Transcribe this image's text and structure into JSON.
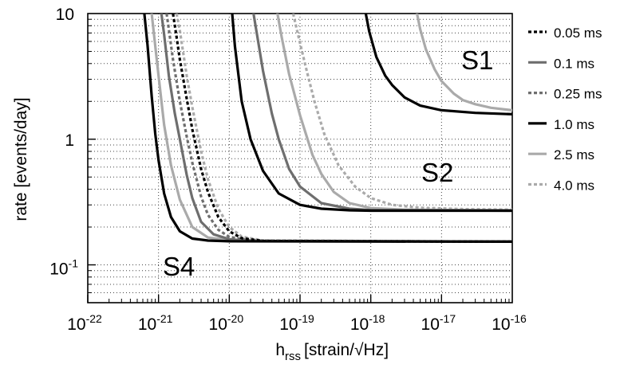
{
  "chart_data": {
    "type": "line",
    "xlabel": "h",
    "xlabel_sub": "rss",
    "xlabel_unit": "[strain/√Hz]",
    "ylabel": "rate [events/day]",
    "xscale": "log",
    "yscale": "log",
    "xlim": [
      1e-22,
      1e-16
    ],
    "ylim": [
      0.05,
      10
    ],
    "x_ticks": [
      {
        "base": "10",
        "exp": "-22",
        "value": 1e-22
      },
      {
        "base": "10",
        "exp": "-21",
        "value": 1e-21
      },
      {
        "base": "10",
        "exp": "-20",
        "value": 1e-20
      },
      {
        "base": "10",
        "exp": "-19",
        "value": 1e-19
      },
      {
        "base": "10",
        "exp": "-18",
        "value": 1e-18
      },
      {
        "base": "10",
        "exp": "-17",
        "value": 1e-17
      },
      {
        "base": "10",
        "exp": "-16",
        "value": 1e-16
      }
    ],
    "y_ticks": [
      {
        "text": "10",
        "value": 10
      },
      {
        "text": "1",
        "value": 1
      },
      {
        "base": "10",
        "exp": "-1",
        "value": 0.1
      }
    ],
    "grid": true,
    "legend_position": "right",
    "legend": [
      {
        "name": "0.05 ms",
        "color": "#000000",
        "dash": "dotted"
      },
      {
        "name": "0.1 ms",
        "color": "#6e6e6e",
        "dash": "solid"
      },
      {
        "name": "0.25 ms",
        "color": "#6e6e6e",
        "dash": "dotted"
      },
      {
        "name": "1.0 ms",
        "color": "#000000",
        "dash": "solid"
      },
      {
        "name": "2.5 ms",
        "color": "#aaaaaa",
        "dash": "solid"
      },
      {
        "name": "4.0 ms",
        "color": "#aaaaaa",
        "dash": "dotted"
      }
    ],
    "annotations": [
      "S1",
      "S2",
      "S4"
    ],
    "series": [
      {
        "run": "S4",
        "style": "1.0 ms",
        "x": [
          6.3e-22,
          7e-22,
          8e-22,
          9e-22,
          1e-21,
          1.2e-21,
          1.5e-21,
          2e-21,
          3e-21,
          5e-21,
          1e-20,
          1e-16
        ],
        "y": [
          10,
          5.6,
          2.2,
          1.1,
          0.68,
          0.37,
          0.24,
          0.185,
          0.162,
          0.156,
          0.154,
          0.153
        ]
      },
      {
        "run": "S4",
        "style": "2.5 ms",
        "x": [
          8e-22,
          9e-22,
          1e-21,
          1.2e-21,
          1.5e-21,
          2e-21,
          3e-21,
          5e-21,
          1e-20,
          2e-20,
          1e-16
        ],
        "y": [
          10,
          5.5,
          3.2,
          1.3,
          0.62,
          0.33,
          0.2,
          0.165,
          0.157,
          0.154,
          0.153
        ]
      },
      {
        "run": "S4",
        "style": "0.1 ms",
        "x": [
          1.1e-21,
          1.2e-21,
          1.4e-21,
          1.7e-21,
          2e-21,
          2.5e-21,
          3e-21,
          4e-21,
          6e-21,
          1e-20,
          2e-20,
          1e-16
        ],
        "y": [
          10,
          6.8,
          3.2,
          1.6,
          1,
          0.52,
          0.34,
          0.22,
          0.175,
          0.16,
          0.155,
          0.153
        ]
      },
      {
        "run": "S4",
        "style": "0.25 ms",
        "x": [
          1.3e-21,
          1.4e-21,
          1.6e-21,
          2e-21,
          2.5e-21,
          3e-21,
          4e-21,
          5e-21,
          7e-21,
          1e-20,
          2e-20,
          1e-16
        ],
        "y": [
          10,
          7.5,
          4.3,
          2,
          1.05,
          0.65,
          0.35,
          0.25,
          0.19,
          0.167,
          0.156,
          0.153
        ]
      },
      {
        "run": "S4",
        "style": "0.05 ms",
        "x": [
          1.6e-21,
          1.8e-21,
          2e-21,
          2.5e-21,
          3e-21,
          4e-21,
          5e-21,
          7e-21,
          1e-20,
          1.5e-20,
          3e-20,
          1e-16
        ],
        "y": [
          10,
          6.5,
          4.3,
          2.1,
          1.2,
          0.58,
          0.38,
          0.24,
          0.185,
          0.163,
          0.155,
          0.153
        ]
      },
      {
        "run": "S4",
        "style": "4.0 ms",
        "x": [
          1.8e-21,
          2e-21,
          2.5e-21,
          3e-21,
          4e-21,
          5e-21,
          7e-21,
          1e-20,
          1.5e-20,
          3e-20,
          1e-16
        ],
        "y": [
          10,
          7.3,
          3.2,
          1.8,
          0.8,
          0.48,
          0.28,
          0.2,
          0.168,
          0.156,
          0.153
        ]
      },
      {
        "run": "S2",
        "style": "1.0 ms",
        "x": [
          1.1e-20,
          1.2e-20,
          1.5e-20,
          2e-20,
          3e-20,
          5e-20,
          1e-19,
          2e-19,
          5e-19,
          1e-18,
          1e-16
        ],
        "y": [
          10,
          5.5,
          2,
          1,
          0.56,
          0.37,
          0.3,
          0.28,
          0.272,
          0.27,
          0.27
        ]
      },
      {
        "run": "S2",
        "style": "0.1 ms",
        "x": [
          2.2e-20,
          2.5e-20,
          3e-20,
          4e-20,
          5e-20,
          7e-20,
          1e-19,
          2e-19,
          5e-19,
          1e-18,
          1e-16
        ],
        "y": [
          10,
          6.5,
          3.5,
          1.6,
          1,
          0.58,
          0.42,
          0.31,
          0.28,
          0.273,
          0.27
        ]
      },
      {
        "run": "S2",
        "style": "2.5 ms",
        "x": [
          4.8e-20,
          5.5e-20,
          7e-20,
          1e-19,
          1.5e-19,
          2e-19,
          3e-19,
          5e-19,
          1e-18,
          3e-18,
          1e-16
        ],
        "y": [
          10,
          6.5,
          3.3,
          1.55,
          0.75,
          0.53,
          0.38,
          0.31,
          0.283,
          0.275,
          0.272
        ]
      },
      {
        "run": "S2",
        "style": "4.0 ms",
        "x": [
          8e-20,
          9e-20,
          1.2e-19,
          1.6e-19,
          2.2e-19,
          3.5e-19,
          6e-19,
          1e-18,
          2e-18,
          5e-18,
          2e-17,
          1e-16
        ],
        "y": [
          10,
          7.5,
          3.8,
          2,
          1.1,
          0.62,
          0.42,
          0.34,
          0.3,
          0.285,
          0.278,
          0.275
        ]
      },
      {
        "run": "S1",
        "style": "1.0 ms",
        "x": [
          8.5e-19,
          9.5e-19,
          1.2e-18,
          1.6e-18,
          2e-18,
          3e-18,
          5e-18,
          1e-17,
          3e-17,
          1e-16
        ],
        "y": [
          10,
          7.2,
          4.5,
          3.2,
          2.7,
          2.15,
          1.85,
          1.7,
          1.62,
          1.58
        ]
      },
      {
        "run": "S1",
        "style": "2.5 ms",
        "x": [
          4.5e-18,
          5e-18,
          6e-18,
          8e-18,
          1e-17,
          1.5e-17,
          2e-17,
          3e-17,
          5e-17,
          1e-16
        ],
        "y": [
          10,
          7.5,
          5.2,
          3.6,
          2.9,
          2.3,
          2.05,
          1.9,
          1.78,
          1.7
        ]
      }
    ]
  }
}
